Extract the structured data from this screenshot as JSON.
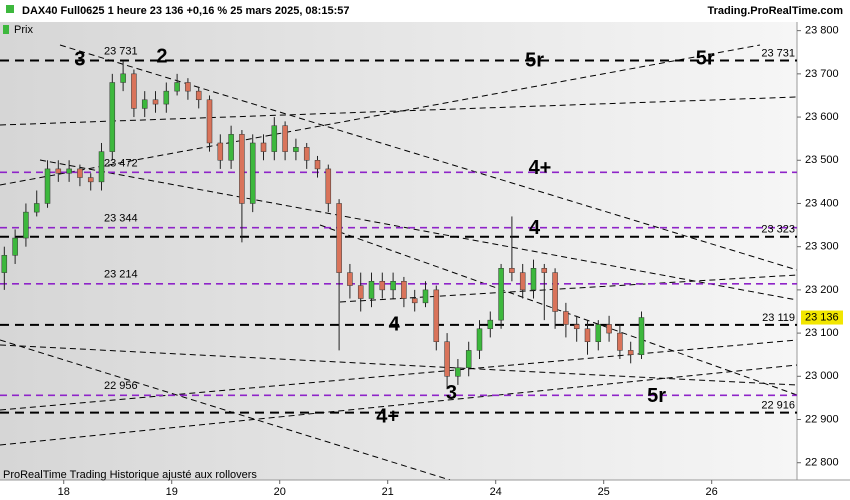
{
  "chart_data": {
    "type": "candlestick",
    "title": "DAX40 Full0625 1 heure 23 136 +0,16 % 25 mars 2025, 08:15:57",
    "source": "Trading.ProRealTime.com",
    "footer": "ProRealTime Trading  Historique ajusté aux rollovers",
    "name": "Prix",
    "up_color": "#3db83d",
    "down_color": "#d9735a",
    "x": [
      -0.55,
      -0.45,
      -0.35,
      -0.25,
      -0.15,
      -0.05,
      0.05,
      0.15,
      0.25,
      0.35,
      0.45,
      0.55,
      0.65,
      0.75,
      0.85,
      0.95,
      1.05,
      1.15,
      1.25,
      1.35,
      1.45,
      1.55,
      1.65,
      1.75,
      1.85,
      1.95,
      2.05,
      2.15,
      2.25,
      2.35,
      2.45,
      2.55,
      2.65,
      2.75,
      2.85,
      2.95,
      3.05,
      3.15,
      3.25,
      3.35,
      3.45,
      3.55,
      3.65,
      3.75,
      3.85,
      3.95,
      4.05,
      4.15,
      4.25,
      4.35,
      4.45,
      4.55,
      4.65,
      4.75,
      4.85,
      4.95,
      5.05,
      5.15,
      5.25,
      5.35
    ],
    "open": [
      23240,
      23280,
      23320,
      23380,
      23400,
      23480,
      23470,
      23480,
      23460,
      23450,
      23520,
      23680,
      23700,
      23620,
      23640,
      23630,
      23660,
      23680,
      23660,
      23640,
      23540,
      23500,
      23560,
      23400,
      23540,
      23520,
      23580,
      23520,
      23530,
      23500,
      23480,
      23400,
      23240,
      23210,
      23180,
      23220,
      23200,
      23220,
      23180,
      23170,
      23200,
      23080,
      23000,
      23020,
      23060,
      23110,
      23130,
      23250,
      23240,
      23200,
      23250,
      23240,
      23150,
      23120,
      23110,
      23080,
      23120,
      23100,
      23060,
      23050
    ],
    "high": [
      23300,
      23340,
      23400,
      23430,
      23500,
      23500,
      23500,
      23490,
      23470,
      23540,
      23700,
      23730,
      23710,
      23660,
      23660,
      23680,
      23700,
      23690,
      23670,
      23650,
      23560,
      23580,
      23570,
      23560,
      23560,
      23600,
      23590,
      23550,
      23540,
      23510,
      23490,
      23410,
      23260,
      23240,
      23240,
      23240,
      23240,
      23230,
      23200,
      23220,
      23210,
      23100,
      23040,
      23080,
      23130,
      23150,
      23260,
      23370,
      23260,
      23270,
      23260,
      23250,
      23170,
      23140,
      23130,
      23130,
      23140,
      23120,
      23080,
      23150
    ],
    "low": [
      23200,
      23260,
      23300,
      23370,
      23390,
      23450,
      23450,
      23440,
      23430,
      23430,
      23500,
      23660,
      23600,
      23600,
      23610,
      23610,
      23650,
      23640,
      23620,
      23520,
      23480,
      23480,
      23310,
      23380,
      23500,
      23500,
      23500,
      23500,
      23480,
      23460,
      23380,
      23060,
      23180,
      23150,
      23160,
      23180,
      23180,
      23160,
      23150,
      23160,
      23060,
      22970,
      22980,
      23000,
      23040,
      23090,
      23110,
      23220,
      23180,
      23180,
      23130,
      23110,
      23090,
      23080,
      23050,
      23060,
      23080,
      23040,
      23030,
      23040
    ],
    "close": [
      23280,
      23320,
      23380,
      23400,
      23480,
      23470,
      23480,
      23460,
      23450,
      23520,
      23680,
      23700,
      23620,
      23640,
      23630,
      23660,
      23680,
      23660,
      23640,
      23540,
      23500,
      23560,
      23400,
      23540,
      23520,
      23580,
      23520,
      23530,
      23500,
      23480,
      23400,
      23240,
      23210,
      23180,
      23220,
      23200,
      23220,
      23180,
      23170,
      23200,
      23080,
      23000,
      23020,
      23060,
      23110,
      23130,
      23250,
      23240,
      23200,
      23250,
      23240,
      23150,
      23120,
      23110,
      23080,
      23120,
      23100,
      23060,
      23050,
      23136
    ],
    "last_label": {
      "value": 23136,
      "label": "23 136"
    },
    "xlim": [
      -0.59,
      6.79
    ],
    "xticks": [
      {
        "value": 0,
        "label": "18"
      },
      {
        "value": 1,
        "label": "19"
      },
      {
        "value": 2,
        "label": "20"
      },
      {
        "value": 3,
        "label": "21"
      },
      {
        "value": 4,
        "label": "24"
      },
      {
        "value": 5,
        "label": "25"
      },
      {
        "value": 6,
        "label": "26"
      }
    ],
    "ylim": [
      22760,
      23820
    ],
    "yticks": [
      {
        "value": 22800,
        "label": "22 800"
      },
      {
        "value": 22900,
        "label": "22 900"
      },
      {
        "value": 23000,
        "label": "23 000"
      },
      {
        "value": 23100,
        "label": "23 100"
      },
      {
        "value": 23200,
        "label": "23 200"
      },
      {
        "value": 23300,
        "label": "23 300"
      },
      {
        "value": 23400,
        "label": "23 400"
      },
      {
        "value": 23500,
        "label": "23 500"
      },
      {
        "value": 23600,
        "label": "23 600"
      },
      {
        "value": 23700,
        "label": "23 700"
      },
      {
        "value": 23800,
        "label": "23 800"
      }
    ],
    "levels": [
      {
        "value": 23731,
        "color": "#000000",
        "left_label": "23 731",
        "right_label": "23 731"
      },
      {
        "value": 23472,
        "color": "#8e24c8",
        "left_label": "23 472"
      },
      {
        "value": 23344,
        "color": "#8e24c8",
        "left_label": "23 344"
      },
      {
        "value": 23323,
        "color": "#000000",
        "right_label": "23 323"
      },
      {
        "value": 23214,
        "color": "#8e24c8",
        "left_label": "23 214"
      },
      {
        "value": 23119,
        "color": "#000000",
        "right_label": "23 119"
      },
      {
        "value": 22956,
        "color": "#8e24c8",
        "left_label": "22 956"
      },
      {
        "value": 22916,
        "color": "#000000",
        "right_label": "22 916"
      }
    ],
    "annotations": [
      {
        "text": "3",
        "x": 0.15,
        "y": 23731,
        "color": "#000000"
      },
      {
        "text": "2",
        "x": 0.91,
        "y": 23738,
        "color": "#8e24c8"
      },
      {
        "text": "5r",
        "x": 4.36,
        "y": 23729,
        "color": "#000000"
      },
      {
        "text": "5r",
        "x": 5.94,
        "y": 23734,
        "color": "#2e8b2e"
      },
      {
        "text": "4+",
        "x": 4.41,
        "y": 23480,
        "color": "#8e24c8"
      },
      {
        "text": "4",
        "x": 4.36,
        "y": 23342,
        "color": "#8e24c8"
      },
      {
        "text": "4",
        "x": 3.06,
        "y": 23118,
        "color": "#000000"
      },
      {
        "text": "3",
        "x": 3.59,
        "y": 22960,
        "color": "#8e24c8"
      },
      {
        "text": "5r",
        "x": 5.49,
        "y": 22953,
        "color": "#8e24c8"
      },
      {
        "text": "4+",
        "x": 3.0,
        "y": 22905,
        "color": "#000000"
      }
    ]
  }
}
